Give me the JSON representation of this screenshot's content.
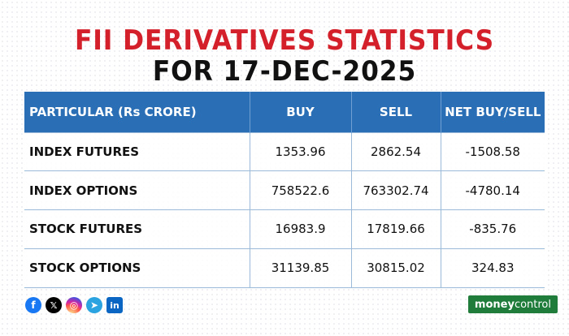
{
  "title_line1": "FII DERIVATIVES STATISTICS",
  "title_line2": "FOR 17-DEC-2025",
  "table": {
    "headers": [
      "PARTICULAR (Rs CRORE)",
      "BUY",
      "SELL",
      "NET BUY/SELL"
    ],
    "rows": [
      [
        "INDEX FUTURES",
        "1353.96",
        "2862.54",
        "-1508.58"
      ],
      [
        "INDEX OPTIONS",
        "758522.6",
        "763302.74",
        "-4780.14"
      ],
      [
        "STOCK FUTURES",
        "16983.9",
        "17819.66",
        "-835.76"
      ],
      [
        "STOCK OPTIONS",
        "31139.85",
        "30815.02",
        "324.83"
      ]
    ]
  },
  "social_icons": [
    "facebook-icon",
    "x-icon",
    "instagram-icon",
    "telegram-icon",
    "linkedin-icon"
  ],
  "social_glyphs": {
    "facebook": "f",
    "x": "𝕏",
    "instagram": "◎",
    "telegram": "➤",
    "linkedin": "in"
  },
  "brand": {
    "part1": "money",
    "part2": "control"
  },
  "colors": {
    "title_red": "#d4202a",
    "header_blue": "#2a6eb5",
    "brand_green": "#1f7c3a"
  }
}
